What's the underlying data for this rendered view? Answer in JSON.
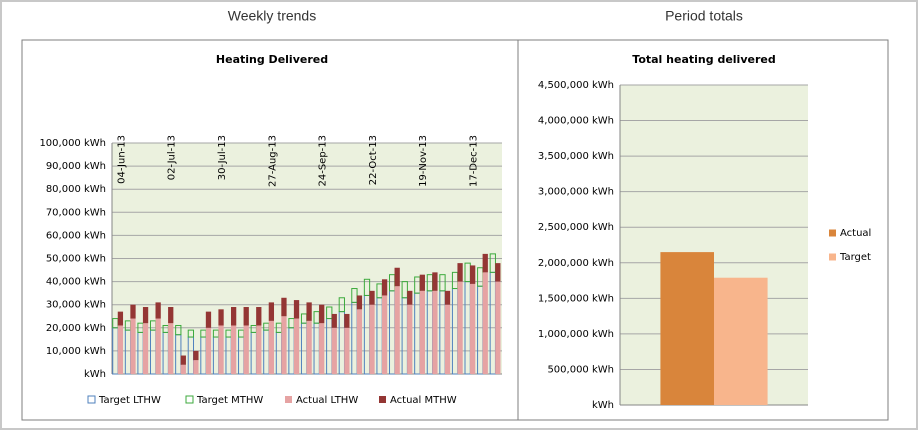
{
  "headings": [
    "Weekly trends",
    "Period totals"
  ],
  "chart_data": [
    {
      "type": "bar",
      "title": "Heating Delivered",
      "stacked": true,
      "categories": [
        "04-Jun-13",
        null,
        null,
        null,
        "02-Jul-13",
        null,
        null,
        null,
        "30-Jul-13",
        null,
        null,
        null,
        "27-Aug-13",
        null,
        null,
        null,
        "24-Sep-13",
        null,
        null,
        null,
        "22-Oct-13",
        null,
        null,
        null,
        "19-Nov-13",
        null,
        null,
        null,
        "17-Dec-13",
        null,
        null
      ],
      "series": [
        {
          "name": "Target LTHW",
          "color": "#4f81bd",
          "outline": true,
          "values": [
            20000,
            19000,
            18000,
            19000,
            18000,
            17000,
            16000,
            16000,
            16000,
            16000,
            16000,
            18000,
            19000,
            18000,
            20000,
            22000,
            22000,
            24000,
            27000,
            31000,
            34000,
            33000,
            36000,
            33000,
            35000,
            36000,
            36000,
            37000,
            40000,
            38000,
            44000
          ]
        },
        {
          "name": "Target MTHW",
          "color": "#3caa3c",
          "outline": true,
          "values": [
            4000,
            4000,
            4000,
            4000,
            3000,
            4000,
            3000,
            3000,
            3000,
            3000,
            3000,
            3000,
            3000,
            4000,
            4000,
            4000,
            5000,
            5000,
            6000,
            6000,
            7000,
            6000,
            7000,
            7000,
            7000,
            7000,
            7000,
            7000,
            8000,
            8000,
            8000
          ]
        },
        {
          "name": "Actual LTHW",
          "color": "#e6a3a3",
          "outline": false,
          "values": [
            21000,
            24000,
            22000,
            24000,
            22000,
            4000,
            6000,
            20000,
            21000,
            21000,
            21000,
            21000,
            23000,
            25000,
            24000,
            23000,
            22000,
            20000,
            20000,
            28000,
            30000,
            34000,
            38000,
            30000,
            36000,
            36000,
            30000,
            40000,
            39000,
            44000,
            40000
          ]
        },
        {
          "name": "Actual MTHW",
          "color": "#943634",
          "outline": false,
          "values": [
            6000,
            6000,
            7000,
            7000,
            7000,
            4000,
            4000,
            7000,
            7000,
            8000,
            8000,
            8000,
            8000,
            8000,
            8000,
            8000,
            8000,
            6000,
            6000,
            6000,
            6000,
            7000,
            8000,
            6000,
            7000,
            8000,
            6000,
            8000,
            8000,
            8000,
            8000
          ]
        }
      ],
      "ylim": [
        0,
        100000
      ],
      "yticks": [
        {
          "value": 0,
          "label": "kWh"
        },
        {
          "value": 10000,
          "label": "10,000 kWh"
        },
        {
          "value": 20000,
          "label": "20,000 kWh"
        },
        {
          "value": 30000,
          "label": "30,000 kWh"
        },
        {
          "value": 40000,
          "label": "40,000 kWh"
        },
        {
          "value": 50000,
          "label": "50,000 kWh"
        },
        {
          "value": 60000,
          "label": "60,000 kWh"
        },
        {
          "value": 70000,
          "label": "70,000 kWh"
        },
        {
          "value": 80000,
          "label": "80,000 kWh"
        },
        {
          "value": 90000,
          "label": "90,000 kWh"
        },
        {
          "value": 100000,
          "label": "100,000 kWh"
        }
      ],
      "grid": true,
      "legend": "bottom"
    },
    {
      "type": "bar",
      "title": "Total heating delivered",
      "categories": [
        null
      ],
      "series": [
        {
          "name": "Actual",
          "color": "#d9853b",
          "values": [
            2150000
          ]
        },
        {
          "name": "Target",
          "color": "#f8b58c",
          "values": [
            1790000
          ]
        }
      ],
      "ylim": [
        0,
        4500000
      ],
      "yticks": [
        {
          "value": 0,
          "label": "kWh"
        },
        {
          "value": 500000,
          "label": "500,000 kWh"
        },
        {
          "value": 1000000,
          "label": "1,000,000 kWh"
        },
        {
          "value": 1500000,
          "label": "1,500,000 kWh"
        },
        {
          "value": 2000000,
          "label": "2,000,000 kWh"
        },
        {
          "value": 2500000,
          "label": "2,500,000 kWh"
        },
        {
          "value": 3000000,
          "label": "3,000,000 kWh"
        },
        {
          "value": 3500000,
          "label": "3,500,000 kWh"
        },
        {
          "value": 4000000,
          "label": "4,000,000 kWh"
        },
        {
          "value": 4500000,
          "label": "4,500,000 kWh"
        }
      ],
      "grid": true,
      "legend": "right"
    }
  ]
}
